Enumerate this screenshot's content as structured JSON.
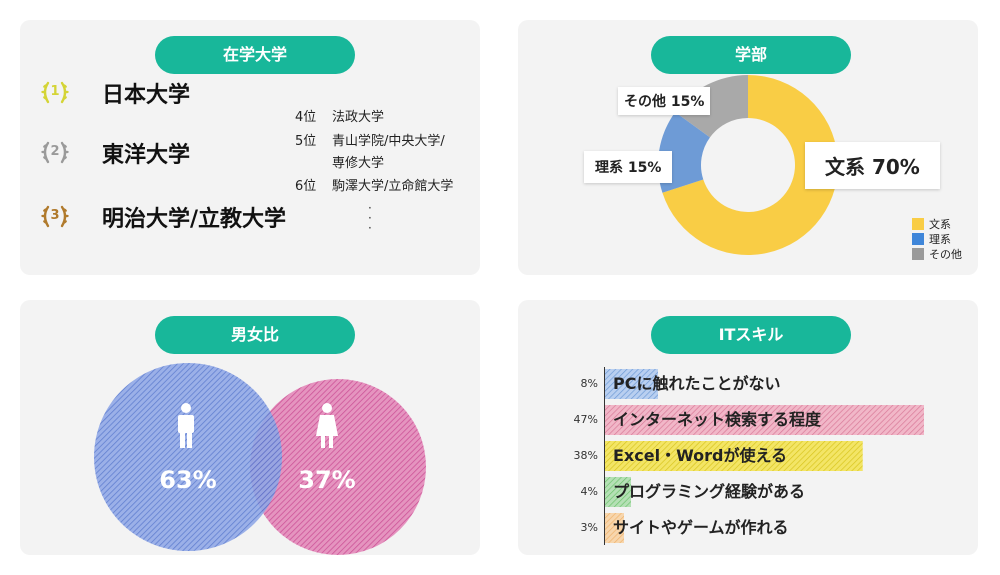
{
  "universities": {
    "title": "在学大学",
    "top": [
      {
        "rank": "1",
        "name": "日本大学",
        "color": "#d4d436"
      },
      {
        "rank": "2",
        "name": "東洋大学",
        "color": "#9a9a9a"
      },
      {
        "rank": "3",
        "name": "明治大学/立教大学",
        "color": "#b07a2c"
      }
    ],
    "others": [
      {
        "pos": "4位",
        "name": "法政大学"
      },
      {
        "pos": "5位",
        "name": "青山学院/中央大学/"
      },
      {
        "pos": "",
        "name": "専修大学"
      },
      {
        "pos": "6位",
        "name": "駒澤大学/立命館大学"
      }
    ]
  },
  "faculty": {
    "title": "学部",
    "labels": [
      "文系 70%",
      "理系 15%",
      "その他 15%"
    ],
    "legend": [
      "文系",
      "理系",
      "その他"
    ]
  },
  "gender": {
    "title": "男女比",
    "male_label": "63%",
    "female_label": "37%",
    "male_color": "#5b7ed6",
    "female_color": "#d4579c"
  },
  "it": {
    "title": "ITスキル"
  },
  "colors": {
    "accent": "#18b79a",
    "humanities": "#f9cd45",
    "science": "#6e9bd6",
    "other": "#a9a9a9"
  },
  "chart_data": [
    {
      "type": "pie",
      "title": "学部",
      "categories": [
        "文系",
        "理系",
        "その他"
      ],
      "values": [
        70,
        15,
        15
      ],
      "colors": [
        "#f9cd45",
        "#6e9bd6",
        "#a9a9a9"
      ],
      "legend": "bottom-right"
    },
    {
      "type": "pie",
      "title": "男女比",
      "categories": [
        "male",
        "female"
      ],
      "values": [
        63,
        37
      ],
      "colors": [
        "#5b7ed6",
        "#d4579c"
      ]
    },
    {
      "type": "bar",
      "title": "ITスキル",
      "categories": [
        "PCに触れたことがない",
        "インターネット検索する程度",
        "Excel・Wordが使える",
        "プログラミング経験がある",
        "サイトやゲームが作れる"
      ],
      "values": [
        8,
        47,
        38,
        4,
        3
      ],
      "value_labels": [
        "8%",
        "47%",
        "38%",
        "4%",
        "3%"
      ],
      "colors": [
        "#6e9bd6",
        "#d97a98",
        "#e8d42a",
        "#6cc36c",
        "#f0b26a"
      ]
    }
  ]
}
